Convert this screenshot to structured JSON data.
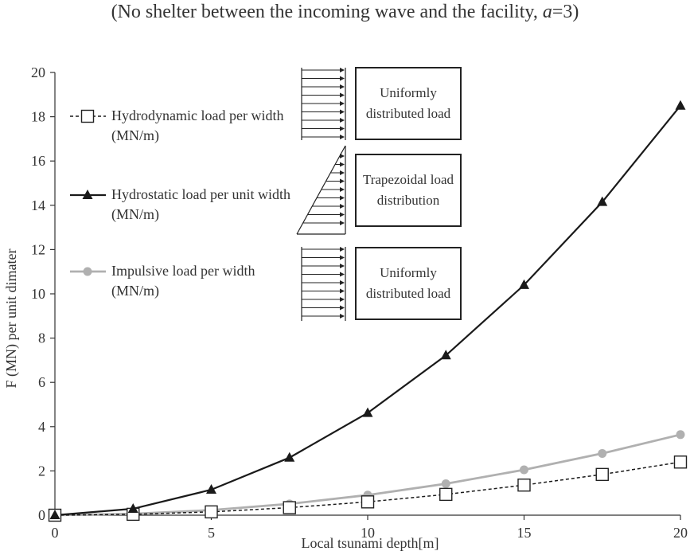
{
  "title_prefix": "(No shelter between the incoming wave and the facility, ",
  "title_var": "a",
  "title_suffix": "=3)",
  "legend": {
    "hydrodynamic": "Hydrodynamic load per width (MN/m)",
    "hydrostatic": "Hydrostatic load per unit width (MN/m)",
    "impulsive": "Impulsive load per width (MN/m)"
  },
  "diagrams": {
    "box1": "Uniformly distributed load",
    "box2": "Trapezoidal load distribution",
    "box3": "Uniformly distributed load"
  },
  "colors": {
    "hydrostatic": "#1a1a1a",
    "hydrodynamic": "#1a1a1a",
    "impulsive": "#b0b0b0"
  },
  "chart_data": {
    "type": "line",
    "xlabel": "Local tsunami depth[m]",
    "ylabel": "F (MN) per unit dimater",
    "xlim": [
      0,
      20
    ],
    "ylim": [
      0,
      20
    ],
    "xticks": [
      0,
      5,
      10,
      15,
      20
    ],
    "yticks": [
      0,
      2,
      4,
      6,
      8,
      10,
      12,
      14,
      16,
      18,
      20
    ],
    "x": [
      0,
      2.5,
      5,
      7.5,
      10,
      12.5,
      15,
      17.5,
      20
    ],
    "series": [
      {
        "name": "Hydrodynamic load per width (MN/m)",
        "marker": "open-square",
        "line": "dashed",
        "values": [
          0,
          0.04,
          0.15,
          0.34,
          0.6,
          0.94,
          1.36,
          1.84,
          2.4
        ]
      },
      {
        "name": "Hydrostatic load per unit width (MN/m)",
        "marker": "filled-triangle",
        "line": "solid",
        "values": [
          0,
          0.29,
          1.15,
          2.6,
          4.62,
          7.22,
          10.4,
          14.15,
          18.5
        ]
      },
      {
        "name": "Impulsive load per width (MN/m)",
        "marker": "filled-circle",
        "line": "solid",
        "values": [
          0,
          0.06,
          0.23,
          0.51,
          0.91,
          1.42,
          2.05,
          2.79,
          3.64
        ]
      }
    ],
    "grid": false,
    "legend_position": "left"
  }
}
